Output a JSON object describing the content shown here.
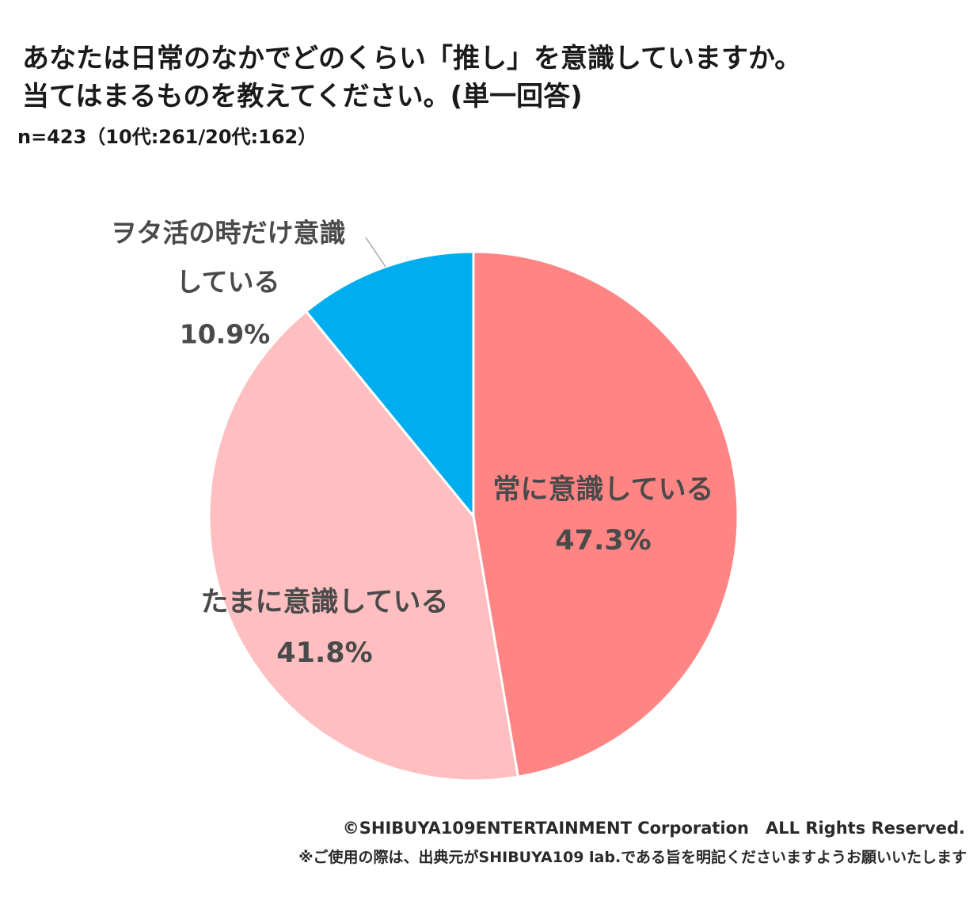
{
  "header": {
    "title_line1": "あなたは日常のなかでどのくらい「推し」を意識していますか。",
    "title_line2": "当てはまるものを教えてください。(単一回答)",
    "sample": "n=423（10代:261/20代:162）"
  },
  "chart_data": {
    "type": "pie",
    "start_angle_deg": 0,
    "direction": "clockwise",
    "slices": [
      {
        "label_lines": [
          "常に意識している"
        ],
        "value": 47.3,
        "value_label": "47.3%",
        "color": "#ff8585"
      },
      {
        "label_lines": [
          "たまに意識している"
        ],
        "value": 41.8,
        "value_label": "41.8%",
        "color": "#ffbfc1"
      },
      {
        "label_lines": [
          "ヲタ活の時だけ意識",
          "している"
        ],
        "value": 10.9,
        "value_label": "10.9%",
        "color": "#00aeef"
      }
    ]
  },
  "footer": {
    "copyright": "©SHIBUYA109ENTERTAINMENT Corporation　ALL Rights Reserved.",
    "note": "※ご使用の際は、出典元がSHIBUYA109 lab.である旨を明記くださいますようお願いいたします"
  }
}
